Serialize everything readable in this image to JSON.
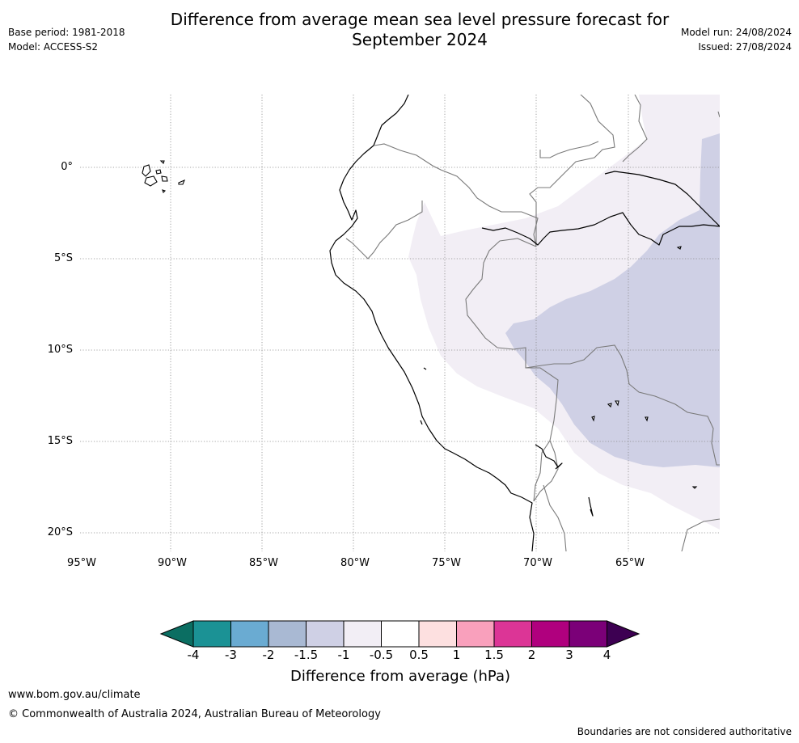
{
  "header": {
    "title_line1": "Difference from average mean sea level pressure forecast for",
    "title_line2": "September 2024",
    "base_period": "Base period: 1981-2018",
    "model": "Model: ACCESS-S2",
    "model_run": "Model run: 24/08/2024",
    "issued": "Issued: 27/08/2024"
  },
  "map": {
    "lon_ticks": [
      "95°W",
      "90°W",
      "85°W",
      "80°W",
      "75°W",
      "70°W",
      "65°W"
    ],
    "lat_ticks": [
      "0°",
      "5°S",
      "10°S",
      "15°S",
      "20°S"
    ],
    "lon_range": [
      -95,
      -60
    ],
    "lat_range": [
      -21,
      4
    ],
    "anomaly_regions": [
      {
        "class": "-1 to -0.5",
        "color": "#f2eef5"
      },
      {
        "class": "-1.5 to -1",
        "color": "#cfd0e5"
      }
    ]
  },
  "colorbar": {
    "ticks": [
      "-4",
      "-3",
      "-2",
      "-1.5",
      "-1",
      "-0.5",
      "0.5",
      "1",
      "1.5",
      "2",
      "3",
      "4"
    ],
    "colors": [
      "#0b6e62",
      "#1b9295",
      "#6aabd2",
      "#a9b9d3",
      "#cfd0e5",
      "#f2eef5",
      "#ffffff",
      "#fde0e0",
      "#f9a0bc",
      "#dc3596",
      "#b0007e",
      "#7b0078",
      "#3d0052"
    ],
    "label": "Difference from average (hPa)"
  },
  "footer": {
    "url": "www.bom.gov.au/climate",
    "copyright": "© Commonwealth of Australia 2024, Australian Bureau of Meteorology",
    "disclaimer": "Boundaries are not considered authoritative"
  }
}
